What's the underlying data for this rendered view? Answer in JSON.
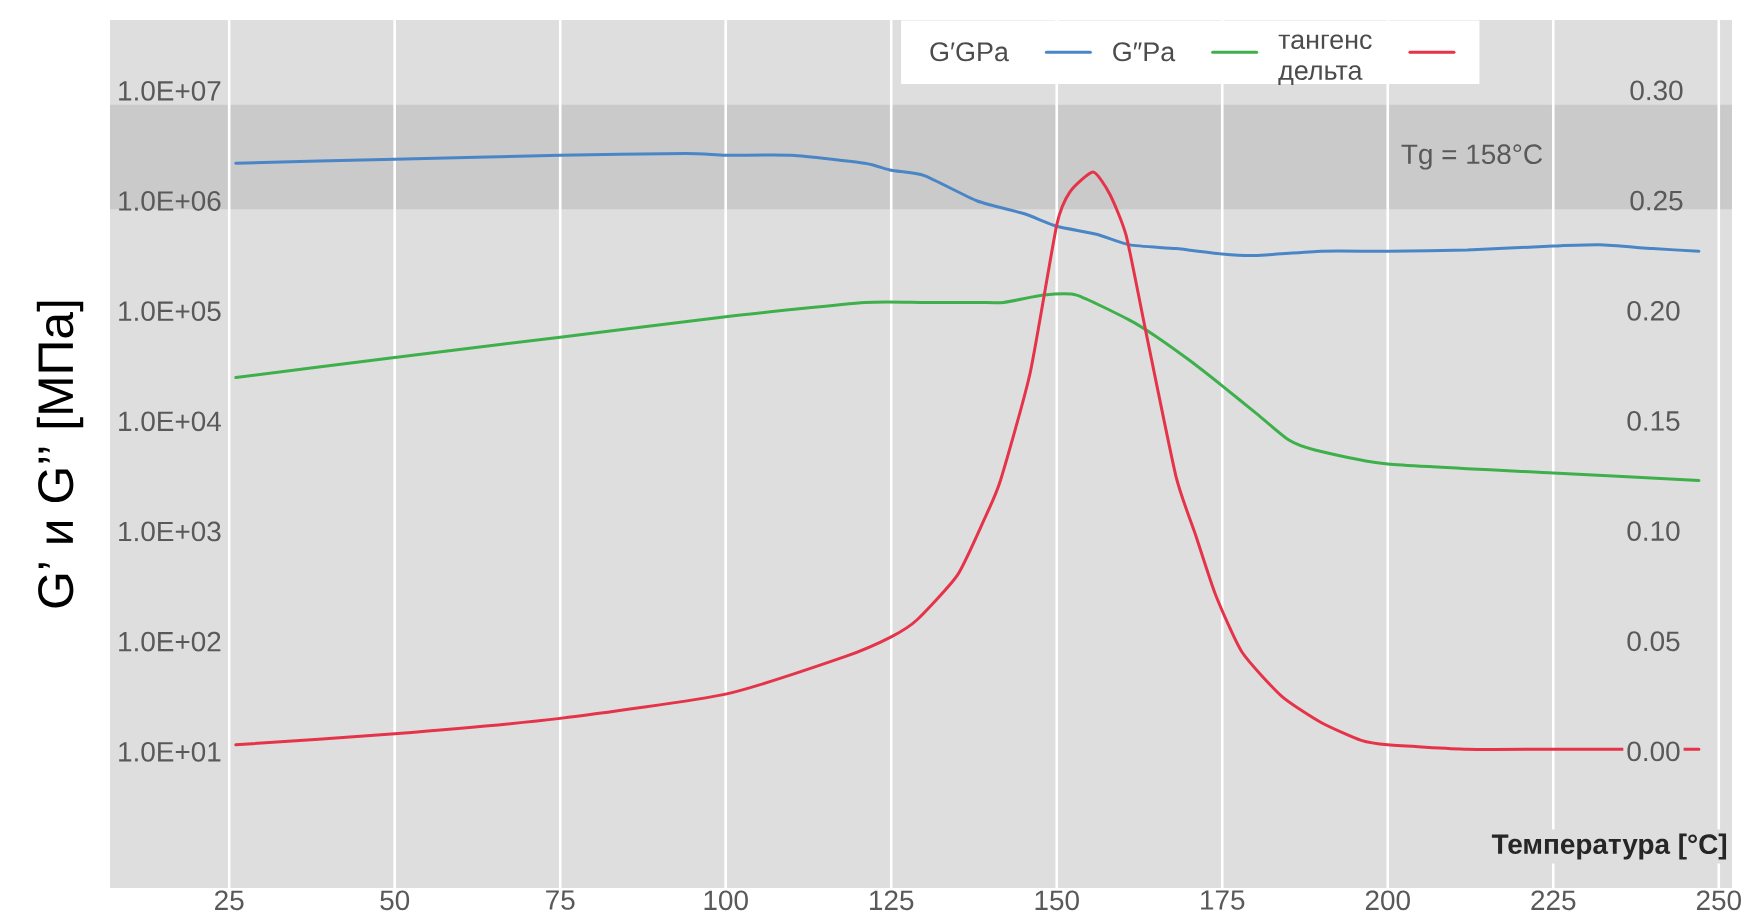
{
  "chart_data": {
    "type": "line",
    "xlabel": "Температура [°C]",
    "ylabel": "G’ и G’’ [МПа]",
    "xlim": [
      7,
      252
    ],
    "xticks": [
      25,
      50,
      75,
      100,
      125,
      150,
      175,
      200,
      225,
      250
    ],
    "ylim": [
      0.58,
      44000000
    ],
    "yticks": [
      {
        "value": 10,
        "label": "1.0E+01"
      },
      {
        "value": 100,
        "label": "1.0E+02"
      },
      {
        "value": 1000,
        "label": "1.0E+03"
      },
      {
        "value": 10000,
        "label": "1.0E+04"
      },
      {
        "value": 100000,
        "label": "1.0E+05"
      },
      {
        "value": 1000000,
        "label": "1.0E+06"
      },
      {
        "value": 10000000,
        "label": "1.0E+07"
      }
    ],
    "y2lim": [
      -0.062,
      0.332
    ],
    "y2ticks": [
      {
        "value": 0,
        "label": "0.00"
      },
      {
        "value": 0.05,
        "label": "0.05"
      },
      {
        "value": 0.1,
        "label": "0.10"
      },
      {
        "value": 0.15,
        "label": "0.15"
      },
      {
        "value": 0.2,
        "label": "0.20"
      },
      {
        "value": 0.25,
        "label": "0.25"
      },
      {
        "value": 0.3,
        "label": "0.30"
      }
    ],
    "log": "y",
    "grid": "x",
    "legend": "top",
    "bands": [
      {
        "axis": "y",
        "from": 840000,
        "to": 7500000,
        "label": "Tg = 158°C",
        "color": "#cacaca"
      }
    ],
    "series": [
      {
        "name": "G′GPa",
        "color": "#4a86c6",
        "x": [
          26,
          50,
          75,
          94,
          100,
          110,
          121,
          125,
          130,
          138,
          145,
          150,
          156,
          161,
          168,
          175,
          180,
          190,
          200,
          212,
          225,
          232,
          240,
          247
        ],
        "values": [
          2200000,
          2400000,
          2600000,
          2700000,
          2600000,
          2600000,
          2200000,
          1900000,
          1700000,
          1000000,
          770000,
          590000,
          500000,
          400000,
          370000,
          330000,
          320000,
          350000,
          350000,
          360000,
          390000,
          400000,
          370000,
          350000
        ]
      },
      {
        "name": "G″Pa",
        "color": "#3db04b",
        "x": [
          26,
          50,
          75,
          100,
          121,
          130,
          138,
          142,
          148,
          153,
          161,
          165,
          170,
          175,
          180,
          185,
          189,
          200,
          225,
          247
        ],
        "values": [
          25000,
          38000,
          58000,
          89000,
          120000,
          120000,
          120000,
          120000,
          140000,
          140000,
          83000,
          59000,
          36000,
          21000,
          12000,
          6800,
          5500,
          4100,
          3400,
          2900
        ]
      },
      {
        "name": "тангенс дельта",
        "color": "#e53349",
        "axis": "y2",
        "x": [
          26,
          50,
          75,
          100,
          118,
          125,
          129,
          135,
          139,
          141.5,
          146,
          150,
          152,
          155.5,
          158,
          160.5,
          163.5,
          168,
          171,
          174,
          178,
          184,
          190,
          196,
          200,
          212,
          225,
          247
        ],
        "values": [
          0.003,
          0.008,
          0.015,
          0.026,
          0.043,
          0.052,
          0.06,
          0.08,
          0.105,
          0.123,
          0.172,
          0.239,
          0.254,
          0.263,
          0.253,
          0.234,
          0.19,
          0.125,
          0.098,
          0.071,
          0.045,
          0.025,
          0.013,
          0.005,
          0.003,
          0.001,
          0.001,
          0.001
        ]
      }
    ]
  }
}
